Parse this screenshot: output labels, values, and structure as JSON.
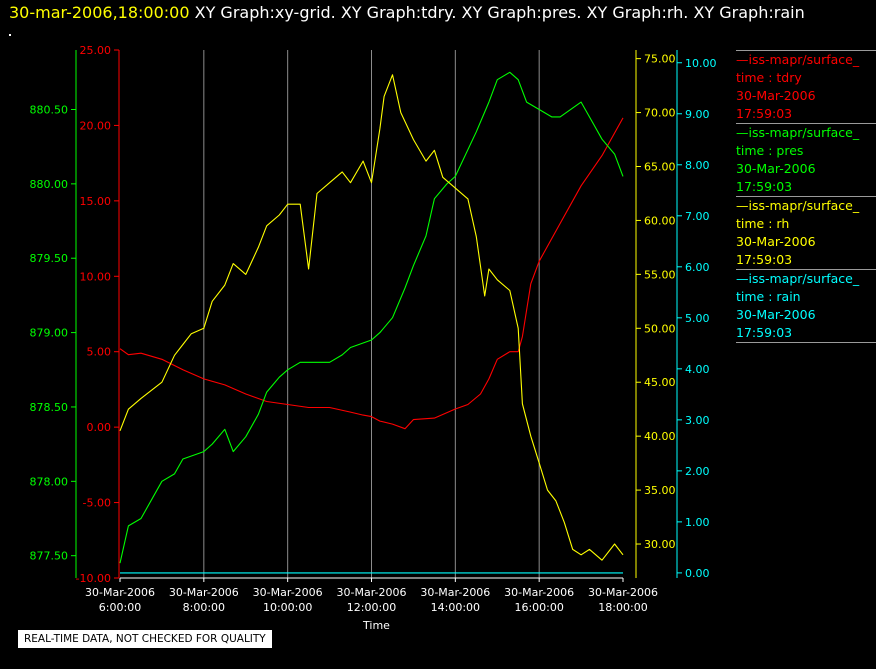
{
  "header": {
    "timestamp": "30-mar-2006,18:00:00",
    "graph_titles": [
      "XY Graph:xy-grid.",
      "XY Graph:tdry.",
      "XY Graph:pres.",
      "XY Graph:rh.",
      "XY Graph:rain"
    ]
  },
  "notice": "REAL-TIME DATA, NOT CHECKED FOR QUALITY",
  "legend": [
    {
      "line1": "—iss-mapr/surface_",
      "line2": "time : tdry",
      "line3": "30-Mar-2006",
      "line4": "17:59:03",
      "color": "#ff0000"
    },
    {
      "line1": "—iss-mapr/surface_",
      "line2": "time : pres",
      "line3": "30-Mar-2006",
      "line4": "17:59:03",
      "color": "#00ff00"
    },
    {
      "line1": "—iss-mapr/surface_",
      "line2": "time : rh",
      "line3": "30-Mar-2006",
      "line4": "17:59:03",
      "color": "#ffff00"
    },
    {
      "line1": "—iss-mapr/surface_",
      "line2": "time : rain",
      "line3": "30-Mar-2006",
      "line4": "17:59:03",
      "color": "#00ffff"
    }
  ],
  "chart_data": {
    "type": "line",
    "xlabel": "Time",
    "xlim": [
      6,
      18
    ],
    "x_ticks": [
      {
        "x": 6,
        "date": "30-Mar-2006",
        "time": "6:00:00"
      },
      {
        "x": 8,
        "date": "30-Mar-2006",
        "time": "8:00:00"
      },
      {
        "x": 10,
        "date": "30-Mar-2006",
        "time": "10:00:00"
      },
      {
        "x": 12,
        "date": "30-Mar-2006",
        "time": "12:00:00"
      },
      {
        "x": 14,
        "date": "30-Mar-2006",
        "time": "14:00:00"
      },
      {
        "x": 16,
        "date": "30-Mar-2006",
        "time": "16:00:00"
      },
      {
        "x": 18,
        "date": "30-Mar-2006",
        "time": "18:00:00"
      }
    ],
    "grid": "vertical",
    "axes": [
      {
        "id": "pres",
        "color": "#00ff00",
        "ylim": [
          877.35,
          880.9
        ],
        "ticks": [
          "877.50",
          "878.00",
          "878.50",
          "879.00",
          "879.50",
          "880.00",
          "880.50"
        ],
        "tick_values": [
          877.5,
          878.0,
          878.5,
          879.0,
          879.5,
          880.0,
          880.5
        ]
      },
      {
        "id": "tdry",
        "color": "#ff0000",
        "ylim": [
          -10,
          25
        ],
        "ticks": [
          "-10.00",
          "-5.00",
          "0.00",
          "5.00",
          "10.00",
          "15.00",
          "20.00",
          "25.00"
        ],
        "tick_values": [
          -10,
          -5,
          0,
          5,
          10,
          15,
          20,
          25
        ]
      },
      {
        "id": "rh",
        "color": "#ffff00",
        "ylim": [
          26.85,
          75.8
        ],
        "ticks": [
          "30.00",
          "35.00",
          "40.00",
          "45.00",
          "50.00",
          "55.00",
          "60.00",
          "65.00",
          "70.00",
          "75.00"
        ],
        "tick_values": [
          30,
          35,
          40,
          45,
          50,
          55,
          60,
          65,
          70,
          75
        ]
      },
      {
        "id": "rain",
        "color": "#00ffff",
        "ylim": [
          -0.1,
          10.25
        ],
        "ticks": [
          "0.00",
          "1.00",
          "2.00",
          "3.00",
          "4.00",
          "5.00",
          "6.00",
          "7.00",
          "8.00",
          "9.00",
          "10.00"
        ],
        "tick_values": [
          0,
          1,
          2,
          3,
          4,
          5,
          6,
          7,
          8,
          9,
          10
        ]
      }
    ],
    "series": [
      {
        "axis": "tdry",
        "color": "#ff0000",
        "x": [
          6.0,
          6.2,
          6.5,
          7.0,
          7.5,
          8.0,
          8.5,
          9.0,
          9.5,
          10.0,
          10.5,
          11.0,
          11.5,
          11.8,
          12.0,
          12.2,
          12.5,
          12.8,
          13.0,
          13.5,
          14.0,
          14.3,
          14.6,
          14.8,
          15.0,
          15.3,
          15.5,
          15.6,
          15.8,
          16.0,
          16.5,
          17.0,
          17.5,
          18.0
        ],
        "y": [
          5.2,
          4.8,
          4.9,
          4.5,
          3.8,
          3.2,
          2.8,
          2.2,
          1.7,
          1.5,
          1.3,
          1.3,
          1.0,
          0.8,
          0.7,
          0.4,
          0.2,
          -0.1,
          0.5,
          0.6,
          1.2,
          1.5,
          2.2,
          3.2,
          4.5,
          5.0,
          5.0,
          6.0,
          9.5,
          11.0,
          13.5,
          16.0,
          18.0,
          20.5
        ]
      },
      {
        "axis": "pres",
        "color": "#00ff00",
        "x": [
          6.0,
          6.2,
          6.5,
          7.0,
          7.3,
          7.5,
          8.0,
          8.2,
          8.5,
          8.7,
          9.0,
          9.3,
          9.5,
          9.8,
          10.0,
          10.3,
          10.5,
          11.0,
          11.3,
          11.5,
          12.0,
          12.2,
          12.5,
          12.8,
          13.0,
          13.3,
          13.5,
          13.8,
          14.0,
          14.5,
          14.8,
          15.0,
          15.3,
          15.5,
          15.7,
          16.0,
          16.3,
          16.5,
          17.0,
          17.3,
          17.5,
          17.8,
          18.0
        ],
        "y": [
          877.45,
          877.7,
          877.75,
          878.0,
          878.05,
          878.15,
          878.2,
          878.25,
          878.35,
          878.2,
          878.3,
          878.45,
          878.6,
          878.7,
          878.75,
          878.8,
          878.8,
          878.8,
          878.85,
          878.9,
          878.95,
          879.0,
          879.1,
          879.3,
          879.45,
          879.65,
          879.9,
          880.0,
          880.05,
          880.35,
          880.55,
          880.7,
          880.75,
          880.7,
          880.55,
          880.5,
          880.45,
          880.45,
          880.55,
          880.4,
          880.3,
          880.2,
          880.05
        ]
      },
      {
        "axis": "rh",
        "color": "#ffff00",
        "x": [
          6.0,
          6.2,
          6.5,
          7.0,
          7.3,
          7.5,
          7.7,
          8.0,
          8.2,
          8.5,
          8.7,
          9.0,
          9.3,
          9.5,
          9.8,
          10.0,
          10.3,
          10.5,
          10.7,
          11.0,
          11.3,
          11.5,
          11.8,
          12.0,
          12.2,
          12.3,
          12.5,
          12.7,
          13.0,
          13.3,
          13.5,
          13.7,
          14.0,
          14.3,
          14.5,
          14.7,
          14.8,
          15.0,
          15.3,
          15.5,
          15.6,
          15.8,
          16.0,
          16.2,
          16.4,
          16.6,
          16.8,
          17.0,
          17.2,
          17.5,
          17.8,
          18.0
        ],
        "y": [
          40.5,
          42.5,
          43.5,
          45.0,
          47.5,
          48.5,
          49.5,
          50.0,
          52.5,
          54.0,
          56.0,
          55.0,
          57.5,
          59.5,
          60.5,
          61.5,
          61.5,
          55.5,
          62.5,
          63.5,
          64.5,
          63.5,
          65.5,
          63.5,
          68.5,
          71.5,
          73.5,
          70.0,
          67.5,
          65.5,
          66.5,
          64.0,
          63.0,
          62.0,
          58.5,
          53.0,
          55.5,
          54.5,
          53.5,
          50.0,
          43.0,
          40.0,
          37.5,
          35.0,
          34.0,
          32.0,
          29.5,
          29.0,
          29.5,
          28.5,
          30.0,
          29.0
        ]
      },
      {
        "axis": "rain",
        "color": "#00ffff",
        "x": [
          6.0,
          18.0
        ],
        "y": [
          0,
          0
        ]
      }
    ]
  }
}
